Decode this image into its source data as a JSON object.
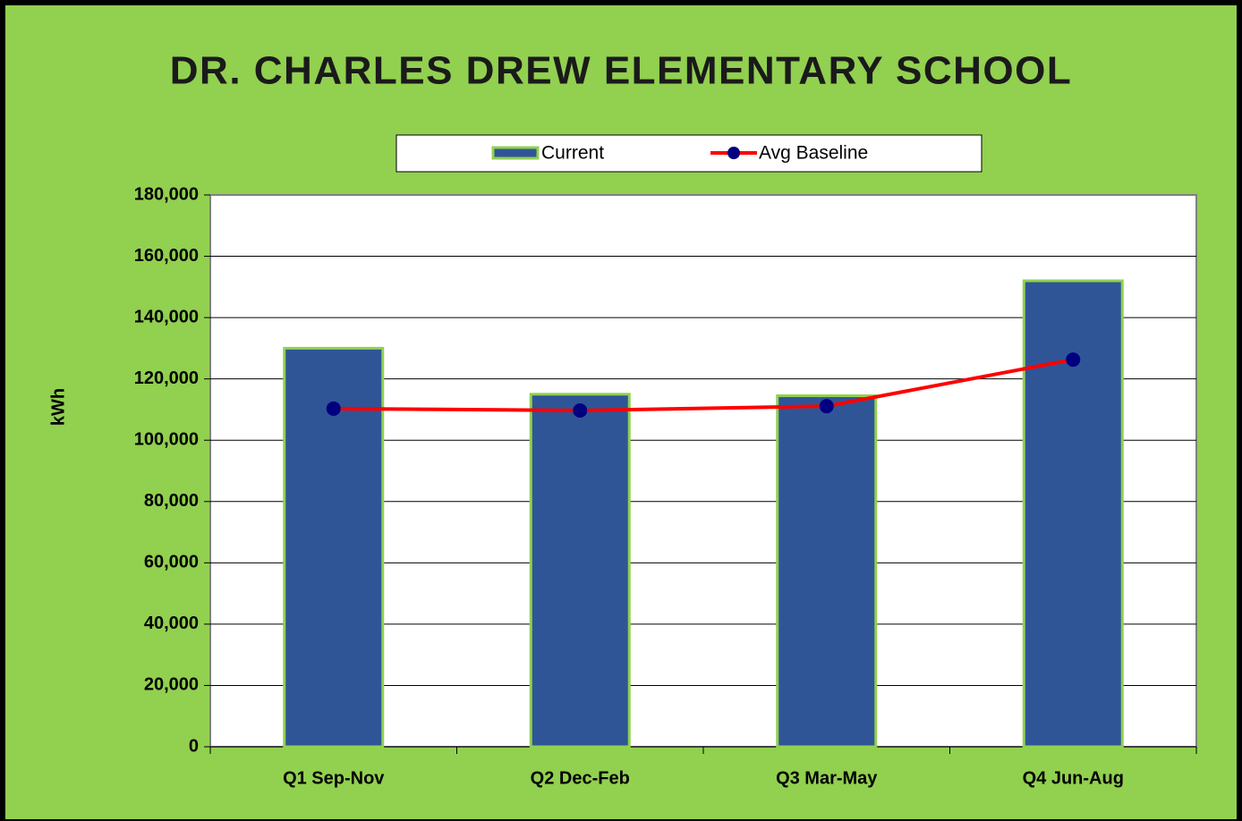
{
  "chart_data": {
    "type": "bar",
    "title": "DR. CHARLES DREW ELEMENTARY SCHOOL",
    "y_label": "kWh",
    "categories": [
      "Q1 Sep-Nov",
      "Q2 Dec-Feb",
      "Q3 Mar-May",
      "Q4 Jun-Aug"
    ],
    "series": [
      {
        "name": "Current",
        "type": "bar",
        "color": "#2f5597",
        "values": [
          130000,
          115000,
          114500,
          152000
        ]
      },
      {
        "name": "Avg Baseline",
        "type": "line",
        "color": "#ff0000",
        "marker_color": "#000080",
        "values": [
          110300,
          109700,
          111100,
          126300
        ]
      }
    ],
    "ylim": [
      0,
      180000
    ],
    "yticks": [
      0,
      {
        "value": 20000,
        "label": "20,000"
      },
      {
        "value": 40000,
        "label": "40,000"
      },
      {
        "value": 60000,
        "label": "60,000"
      },
      {
        "value": 80000,
        "label": "80,000"
      },
      {
        "value": 100000,
        "label": "100,000"
      },
      {
        "value": 120000,
        "label": "120,000"
      },
      {
        "value": 140000,
        "label": "140,000"
      },
      {
        "value": 160000,
        "label": "160,000"
      },
      {
        "value": 180000,
        "label": "180,000"
      }
    ],
    "grid": true,
    "legend": "top"
  }
}
